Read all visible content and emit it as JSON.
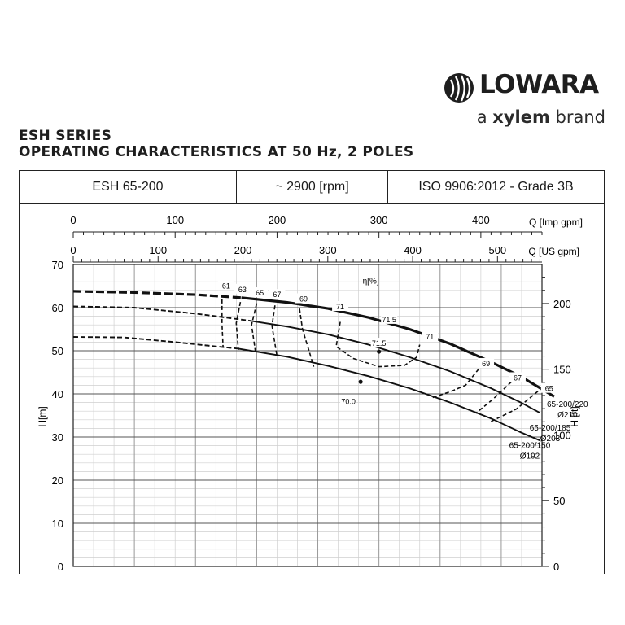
{
  "brand": {
    "name": "LOWARA",
    "tagline_prefix": "a ",
    "tagline_bold": "xylem",
    "tagline_suffix": " brand",
    "logo_icon": "lowara-swirl-icon"
  },
  "title": {
    "line1": "ESH SERIES",
    "line2": "OPERATING CHARACTERISTICS AT 50 Hz, 2 POLES"
  },
  "header": {
    "model": "ESH 65-200",
    "speed": "~ 2900 [rpm]",
    "standard": "ISO 9906:2012 - Grade 3B"
  },
  "chart_data": {
    "type": "line",
    "title": "",
    "xlabel_top": "Q [Imp gpm]",
    "xlabel_mid": "Q [US gpm]",
    "ylabel_left": "H[m]",
    "ylabel_right": "H [ft]",
    "efficiency_label": "η[%]",
    "x_imp_range": [
      0,
      460
    ],
    "x_imp_ticks": [
      0,
      100,
      200,
      300,
      400
    ],
    "x_us_ticks": [
      0,
      100,
      200,
      300,
      400,
      500
    ],
    "ylim_m": [
      0,
      70
    ],
    "y_m_ticks": [
      0,
      10,
      20,
      30,
      40,
      50,
      60,
      70
    ],
    "y_ft_ticks": [
      0,
      50,
      100,
      150,
      200
    ],
    "grid": true,
    "colors": {
      "curve": "#111111",
      "grid": "#9a9a9a",
      "grid_minor": "#cfcfcf"
    },
    "series": [
      {
        "name": "65-200/220",
        "label_line2": "Ø210",
        "dashed_points": [
          [
            0,
            63.8
          ],
          [
            60,
            63.5
          ],
          [
            120,
            63
          ],
          [
            165,
            62.3
          ]
        ],
        "solid_points": [
          [
            165,
            62.3
          ],
          [
            210,
            61.2
          ],
          [
            250,
            59.8
          ],
          [
            290,
            57.7
          ],
          [
            330,
            55.0
          ],
          [
            370,
            51.6
          ],
          [
            410,
            47.4
          ],
          [
            440,
            43.9
          ],
          [
            462,
            40.8
          ],
          [
            472,
            39.4
          ]
        ]
      },
      {
        "name": "65-200/185",
        "label_line2": "Ø203",
        "dashed_points": [
          [
            0,
            60.3
          ],
          [
            60,
            60.0
          ],
          [
            120,
            58.6
          ],
          [
            150,
            57.7
          ],
          [
            175,
            56.9
          ]
        ],
        "solid_points": [
          [
            175,
            56.9
          ],
          [
            210,
            55.6
          ],
          [
            250,
            53.8
          ],
          [
            290,
            51.4
          ],
          [
            330,
            48.5
          ],
          [
            370,
            45.2
          ],
          [
            410,
            41.3
          ],
          [
            440,
            37.9
          ],
          [
            458,
            35.6
          ]
        ]
      },
      {
        "name": "65-200/150",
        "label_line2": "Ø192",
        "dashed_points": [
          [
            0,
            53.2
          ],
          [
            50,
            53.1
          ],
          [
            100,
            52.0
          ],
          [
            140,
            51.0
          ],
          [
            162,
            50.5
          ]
        ],
        "solid_points": [
          [
            162,
            50.5
          ],
          [
            210,
            48.6
          ],
          [
            250,
            46.5
          ],
          [
            290,
            44.1
          ],
          [
            330,
            41.3
          ],
          [
            370,
            38.0
          ],
          [
            410,
            34.3
          ],
          [
            440,
            31.0
          ],
          [
            458,
            29.2
          ]
        ]
      }
    ],
    "iso_efficiency": [
      {
        "label": "61",
        "points": [
          [
            146,
            61.9
          ],
          [
            146,
            56.2
          ],
          [
            147,
            50.9
          ]
        ]
      },
      {
        "label": "63",
        "points": [
          [
            164,
            61.3
          ],
          [
            160,
            56.4
          ],
          [
            162,
            50.2
          ]
        ]
      },
      {
        "label": "65",
        "points": [
          [
            180,
            61.0
          ],
          [
            175,
            56.0
          ],
          [
            179,
            49.5
          ]
        ]
      },
      {
        "label": "67",
        "points": [
          [
            198,
            60.5
          ],
          [
            195,
            55.8
          ],
          [
            200,
            48.7
          ]
        ]
      },
      {
        "label": "69",
        "points": [
          [
            222,
            59.8
          ],
          [
            225,
            55.0
          ],
          [
            232,
            49.5
          ],
          [
            236,
            46.3
          ]
        ]
      },
      {
        "label": "71",
        "points": [
          [
            262,
            56.7
          ],
          [
            258,
            51.0
          ],
          [
            275,
            48.2
          ],
          [
            300,
            46.3
          ],
          [
            325,
            46.6
          ],
          [
            337,
            48.5
          ],
          [
            340,
            51.4
          ]
        ]
      },
      {
        "label": "69",
        "points": [
          [
            398,
            45.8
          ],
          [
            385,
            42.0
          ],
          [
            370,
            40.5
          ],
          [
            352,
            39.1
          ]
        ]
      },
      {
        "label": "67",
        "points": [
          [
            430,
            42.8
          ],
          [
            412,
            38.8
          ],
          [
            395,
            35.5
          ]
        ]
      },
      {
        "label": "65",
        "points": [
          [
            456,
            40.6
          ],
          [
            435,
            36.5
          ],
          [
            410,
            33.6
          ]
        ]
      }
    ],
    "efficiency_labels": [
      {
        "text": "61",
        "x": 150,
        "y": 64.8
      },
      {
        "text": "63",
        "x": 166,
        "y": 64.0
      },
      {
        "text": "65",
        "x": 183,
        "y": 63.2
      },
      {
        "text": "67",
        "x": 200,
        "y": 62.8
      },
      {
        "text": "69",
        "x": 226,
        "y": 61.8
      },
      {
        "text": "71",
        "x": 262,
        "y": 60.0
      },
      {
        "text": "71.5",
        "x": 310,
        "y": 57.0
      },
      {
        "text": "71",
        "x": 350,
        "y": 53.0
      },
      {
        "text": "71.5",
        "x": 300,
        "y": 51.5
      },
      {
        "text": "70.0",
        "x": 270,
        "y": 38.0
      },
      {
        "text": "69",
        "x": 405,
        "y": 46.8
      },
      {
        "text": "67",
        "x": 436,
        "y": 43.5
      },
      {
        "text": "65",
        "x": 467,
        "y": 41.0
      }
    ],
    "markers": [
      [
        300,
        49.8
      ],
      [
        282,
        42.8
      ]
    ],
    "series_label_positions": [
      {
        "x": 485,
        "y": 37.0
      },
      {
        "x": 468,
        "y": 31.5
      },
      {
        "x": 448,
        "y": 27.5
      }
    ]
  }
}
